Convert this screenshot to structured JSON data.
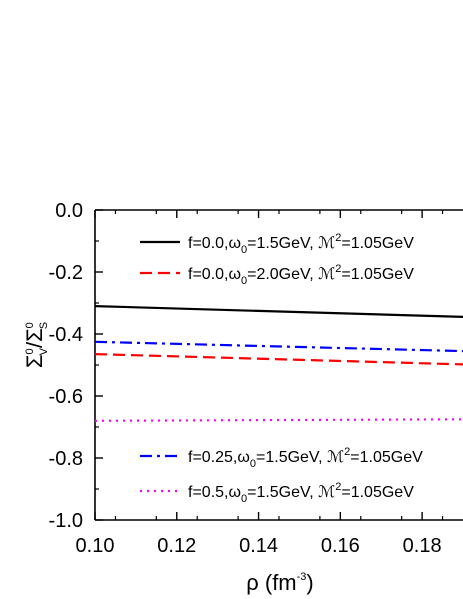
{
  "chart_data": {
    "type": "line",
    "title": "",
    "xlabel": "ρ (fm⁻³)",
    "xlabel_parts": {
      "symbol": "ρ",
      "unit_open": " (fm",
      "exp": "-3",
      "unit_close": ")"
    },
    "ylabel": "ΣV0/ΣS0",
    "ylabel_parts": {
      "sigma": "Σ",
      "v_sub": "V",
      "v_sup": "0",
      "slash": "/",
      "s_sub": "S",
      "s_sup": "0"
    },
    "xlim": [
      0.1,
      0.19
    ],
    "ylim": [
      -1.0,
      0.0
    ],
    "x_ticks": [
      "0.10",
      "0.12",
      "0.14",
      "0.16",
      "0.18"
    ],
    "y_ticks": [
      "0.0",
      "-0.2",
      "-0.4",
      "-0.6",
      "-0.8",
      "-1.0"
    ],
    "x_tick_values": [
      0.1,
      0.12,
      0.14,
      0.16,
      0.18
    ],
    "y_tick_values": [
      0.0,
      -0.2,
      -0.4,
      -0.6,
      -0.8,
      -1.0
    ],
    "grid": false,
    "legend_placement": "top-right and bottom-right",
    "series": [
      {
        "name": "f=0.0,ω0=1.5GeV, ℳ2=1.05GeV",
        "label_parts": {
          "pre": "f=0.0,ω",
          "sub": "0",
          "mid": "=1.5GeV, ℳ",
          "sup": "2",
          "post": "=1.05GeV"
        },
        "color": "#000000",
        "dash": "solid",
        "x": [
          0.1,
          0.19
        ],
        "y": [
          -0.31,
          -0.345
        ]
      },
      {
        "name": "f=0.0,ω0=2.0GeV, ℳ2=1.05GeV",
        "label_parts": {
          "pre": "f=0.0,ω",
          "sub": "0",
          "mid": "=2.0GeV, ℳ",
          "sup": "2",
          "post": "=1.05GeV"
        },
        "color": "#ff0000",
        "dash": "dash",
        "x": [
          0.1,
          0.19
        ],
        "y": [
          -0.465,
          -0.498
        ]
      },
      {
        "name": "f=0.25,ω0=1.5GeV, ℳ2=1.05GeV",
        "label_parts": {
          "pre": "f=0.25,ω",
          "sub": "0",
          "mid": "=1.5GeV, ℳ",
          "sup": "2",
          "post": "=1.05GeV"
        },
        "color": "#0000ff",
        "dash": "dashdot",
        "x": [
          0.1,
          0.19
        ],
        "y": [
          -0.425,
          -0.455
        ]
      },
      {
        "name": "f=0.5,ω0=1.5GeV, ℳ2=1.05GeV",
        "label_parts": {
          "pre": "f=0.5,ω",
          "sub": "0",
          "mid": "=1.5GeV, ℳ",
          "sup": "2",
          "post": "=1.05GeV"
        },
        "color": "#ff00ff",
        "dash": "dot",
        "x": [
          0.1,
          0.19
        ],
        "y": [
          -0.68,
          -0.675
        ]
      }
    ]
  }
}
